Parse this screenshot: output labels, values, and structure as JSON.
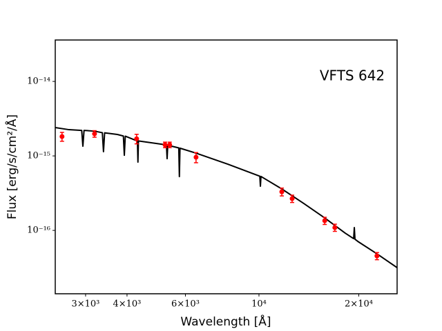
{
  "chart_data": {
    "type": "line",
    "x_label": "Wavelength [Å]",
    "y_label": "Flux [erg/s/cm²/Å]",
    "annotation": "VFTS 642",
    "xscale": "log",
    "yscale": "log",
    "xlim": [
      2430,
      26100
    ],
    "ylim": [
      1.41e-17,
      3.6e-14
    ],
    "xticks": [
      {
        "value": 3000,
        "label": "3×10³"
      },
      {
        "value": 4000,
        "label": "4×10³"
      },
      {
        "value": 6000,
        "label": "6×10³"
      },
      {
        "value": 10000,
        "label": "10⁴"
      },
      {
        "value": 20000,
        "label": "2×10⁴"
      }
    ],
    "yticks": [
      {
        "value": 1e-16,
        "label": "10⁻¹⁶"
      },
      {
        "value": 1e-15,
        "label": "10⁻¹⁵"
      },
      {
        "value": 1e-14,
        "label": "10⁻¹⁴"
      }
    ],
    "series": [
      {
        "type": "line",
        "color": "#000000",
        "x": [
          2430,
          2673,
          2920,
          2944,
          2968,
          3192,
          3370,
          3397,
          3424,
          3741,
          3900,
          3926,
          3952,
          4276,
          4300,
          4315,
          4330,
          5236,
          5260,
          5284,
          5308,
          5730,
          5754,
          5778,
          6460,
          8054,
          10000,
          10060,
          10100,
          10140,
          11720,
          13650,
          15790,
          18200,
          19300,
          19390,
          19480,
          19870,
          22690,
          26100
        ],
        "values": [
          2.4e-15,
          2.25e-15,
          2.2e-15,
          1.35e-15,
          2.2e-15,
          2.15e-15,
          2.05e-15,
          1.14e-15,
          2.04e-15,
          1.94e-15,
          1.85e-15,
          1.02e-15,
          1.84e-15,
          1.6e-15,
          1.59e-15,
          8.25e-16,
          1.59e-15,
          1.41e-15,
          1.4e-15,
          9.18e-16,
          1.39e-15,
          1.28e-15,
          5.27e-16,
          1.27e-15,
          1.09e-15,
          7.74e-16,
          5.39e-16,
          5.34e-16,
          3.92e-16,
          5.3e-16,
          3.6e-16,
          2.3e-16,
          1.47e-16,
          9.19e-17,
          7.75e-17,
          1.09e-16,
          7.6e-17,
          7.11e-17,
          4.85e-17,
          3.16e-17
        ]
      },
      {
        "type": "scatter",
        "color": "#ff0000",
        "x": [
          2547,
          3192,
          4276,
          5210,
          5380,
          6460,
          11720,
          12590,
          15790,
          16940,
          22690
        ],
        "values": [
          1.82e-15,
          1.98e-15,
          1.7e-15,
          1.41e-15,
          1.41e-15,
          9.6e-16,
          3.3e-16,
          2.67e-16,
          1.35e-16,
          1.09e-16,
          4.54e-17
        ],
        "errors": [
          2.5e-16,
          2e-16,
          2.5e-16,
          1.2e-16,
          1.2e-16,
          1.5e-16,
          4e-17,
          3e-17,
          1.5e-17,
          1.2e-17,
          5e-18
        ]
      }
    ]
  }
}
